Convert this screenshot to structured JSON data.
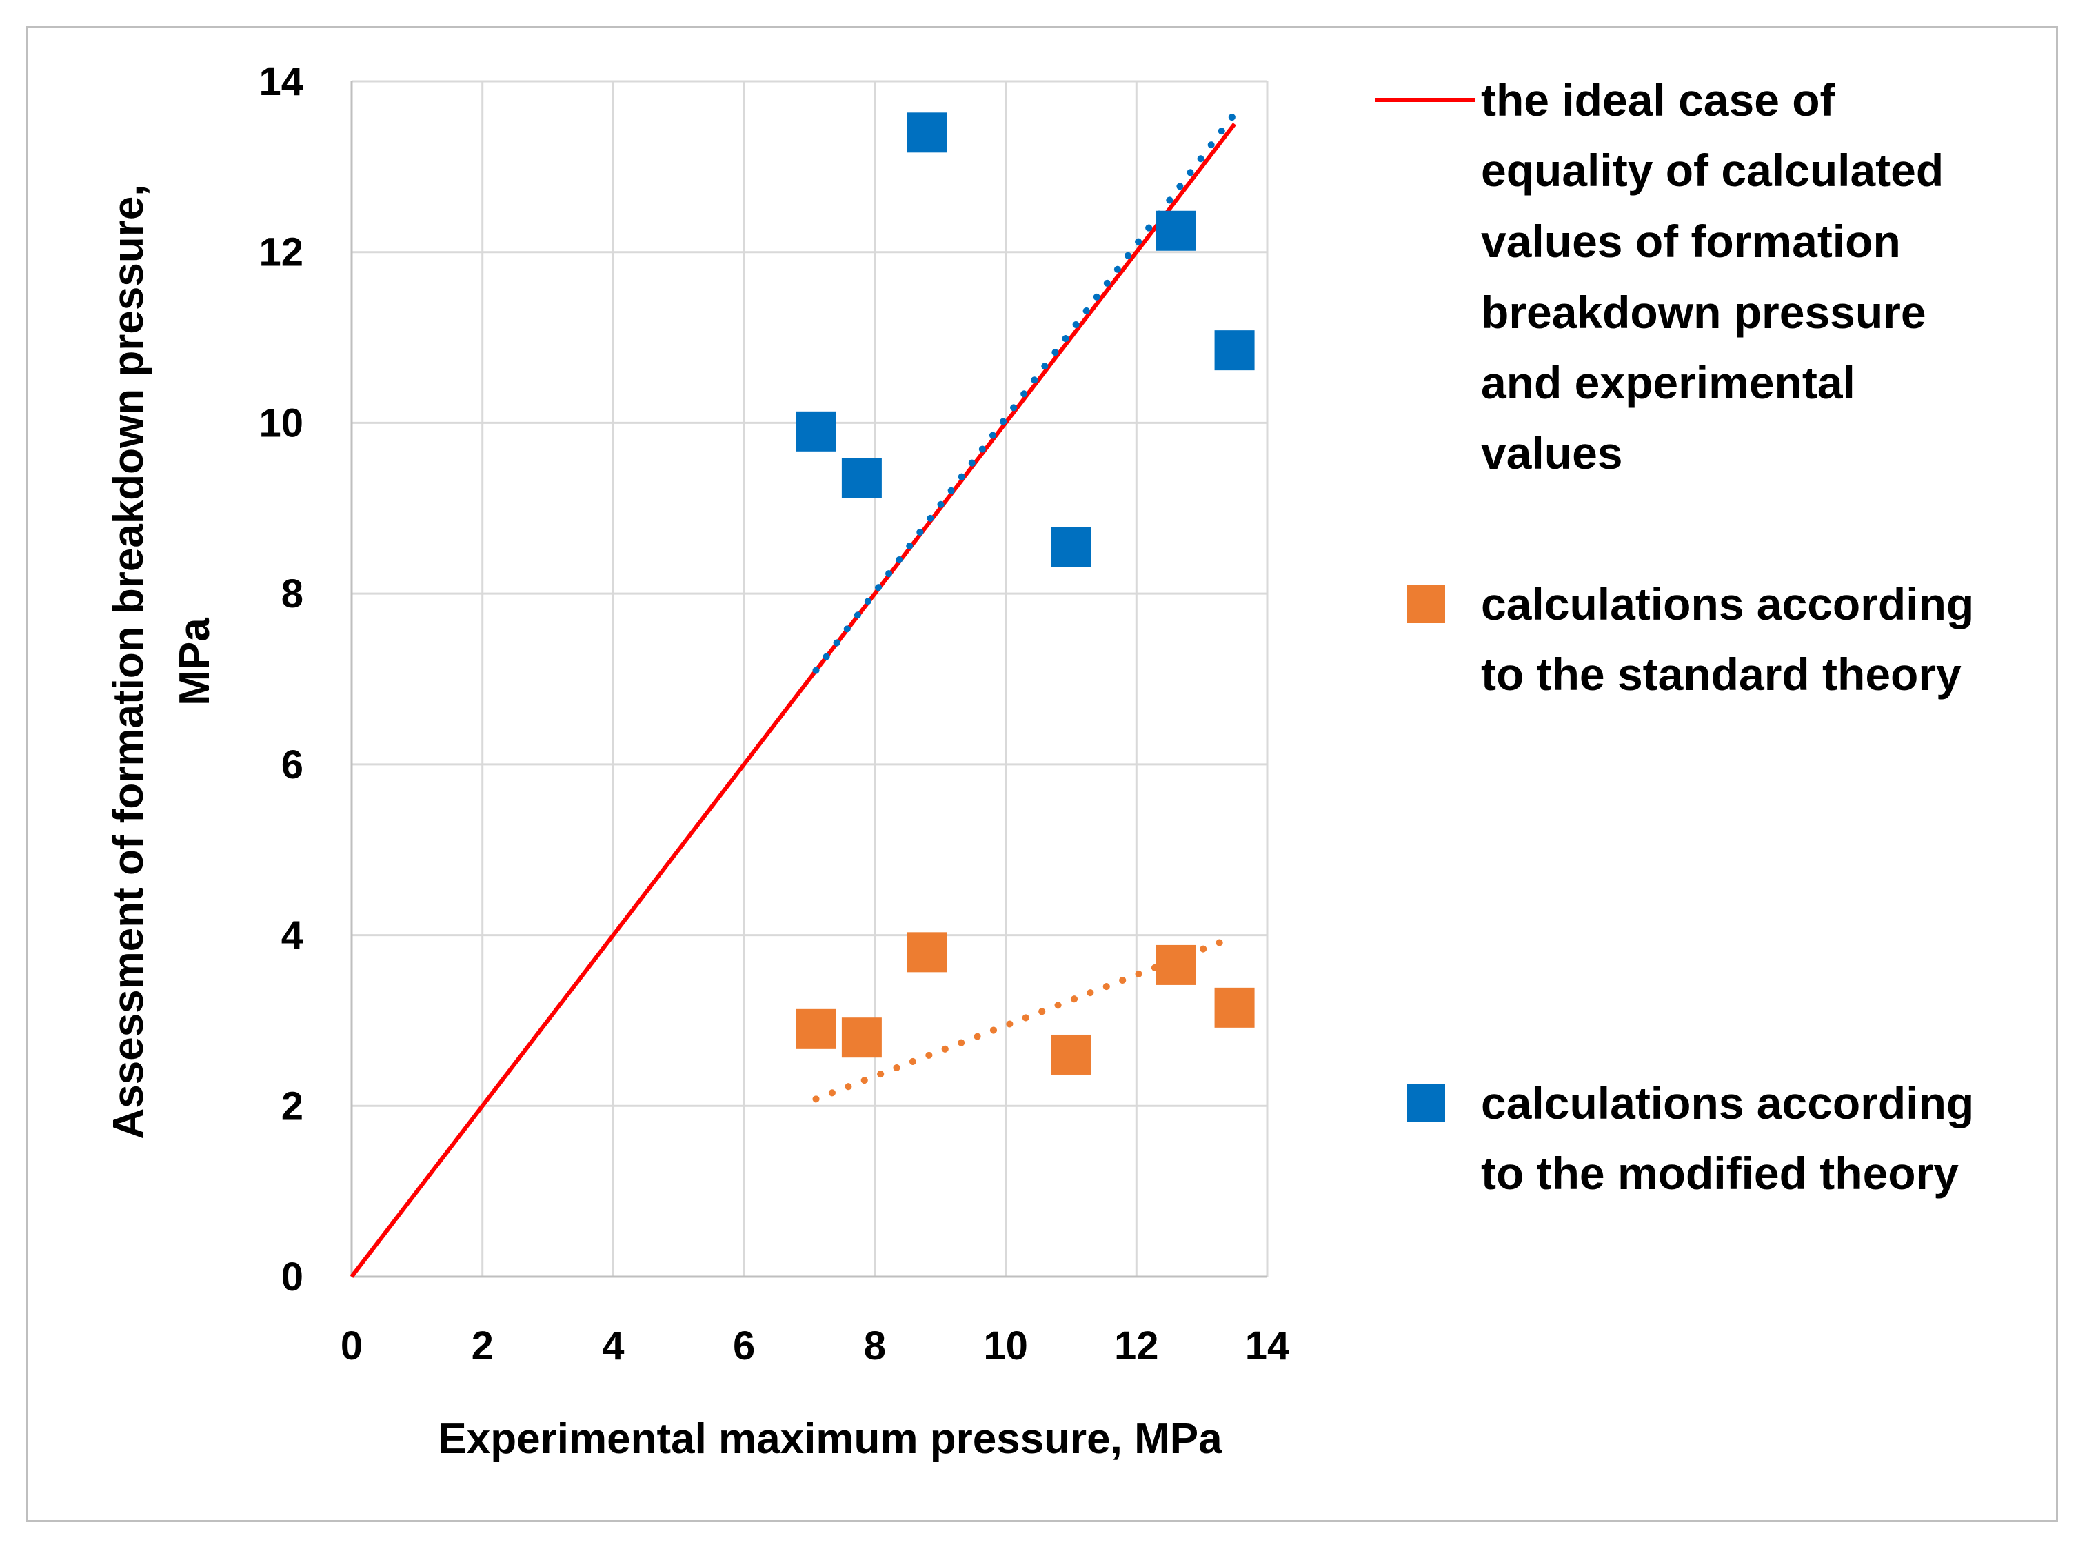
{
  "chart_data": {
    "type": "scatter",
    "title": "",
    "xlabel": "Experimental maximum pressure, MPa",
    "ylabel_lines": [
      "Assessment of formation breakdown pressure,",
      "MPa"
    ],
    "xlim": [
      0,
      14
    ],
    "ylim": [
      0,
      14
    ],
    "x_ticks": [
      "0",
      "2",
      "4",
      "6",
      "8",
      "10",
      "12",
      "14"
    ],
    "y_ticks": [
      "0",
      "2",
      "4",
      "6",
      "8",
      "10",
      "12",
      "14"
    ],
    "grid": true,
    "legend_position": "right",
    "series": [
      {
        "name": "the ideal case of equality of calculated values of formation breakdown pressure and experimental values",
        "legend_lines": [
          "the ideal case of",
          "equality of calculated",
          "values of formation",
          "breakdown pressure",
          "and experimental",
          "values"
        ],
        "kind": "line",
        "color": "#ff0000",
        "x": [
          0,
          13.5
        ],
        "y": [
          0,
          13.5
        ]
      },
      {
        "name": "calculations according to the standard theory",
        "legend_lines": [
          "calculations according",
          "to the standard theory"
        ],
        "kind": "marker",
        "color": "#ed7d31",
        "x": [
          7.1,
          7.8,
          8.8,
          11.0,
          12.6,
          13.5
        ],
        "y": [
          2.9,
          2.8,
          3.8,
          2.6,
          3.65,
          3.15
        ],
        "trendline": {
          "x": [
            7.1,
            13.5
          ],
          "y": [
            2.08,
            3.98
          ]
        }
      },
      {
        "name": "calculations according to the modified theory",
        "legend_lines": [
          "calculations according",
          "to the modified theory"
        ],
        "kind": "marker",
        "color": "#0070c0",
        "x": [
          7.1,
          7.8,
          8.8,
          11.0,
          12.6,
          13.5
        ],
        "y": [
          9.9,
          9.35,
          13.4,
          8.55,
          12.25,
          10.85
        ],
        "trendline": {
          "x": [
            7.1,
            13.5
          ],
          "y": [
            7.1,
            13.62
          ]
        }
      }
    ]
  }
}
